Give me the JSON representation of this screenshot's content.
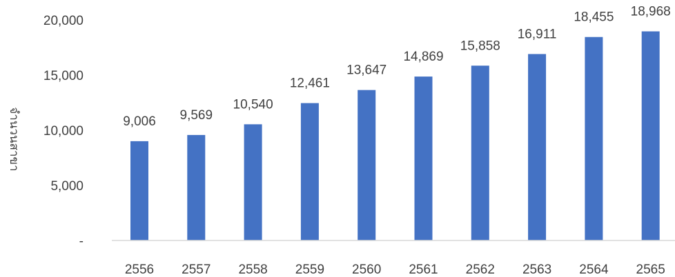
{
  "chart_data": {
    "type": "bar",
    "title": "",
    "xlabel": "",
    "ylabel": "จำนวนสาขา",
    "categories": [
      "2556",
      "2557",
      "2558",
      "2559",
      "2560",
      "2561",
      "2562",
      "2563",
      "2564",
      "2565"
    ],
    "values": [
      9006,
      9569,
      10540,
      12461,
      13647,
      14869,
      15858,
      16911,
      18455,
      18968
    ],
    "value_labels": [
      "9,006",
      "9,569",
      "10,540",
      "12,461",
      "13,647",
      "14,869",
      "15,858",
      "16,911",
      "18,455",
      "18,968"
    ],
    "ylim": [
      0,
      20000
    ],
    "y_ticks": [
      0,
      5000,
      10000,
      15000,
      20000
    ],
    "y_tick_labels": [
      "-",
      "5,000",
      "10,000",
      "15,000",
      "20,000"
    ],
    "grid": false,
    "legend": "none",
    "bar_color": "#4472C4",
    "axis_color": "#D9D9D9",
    "text_color": "#404040"
  }
}
